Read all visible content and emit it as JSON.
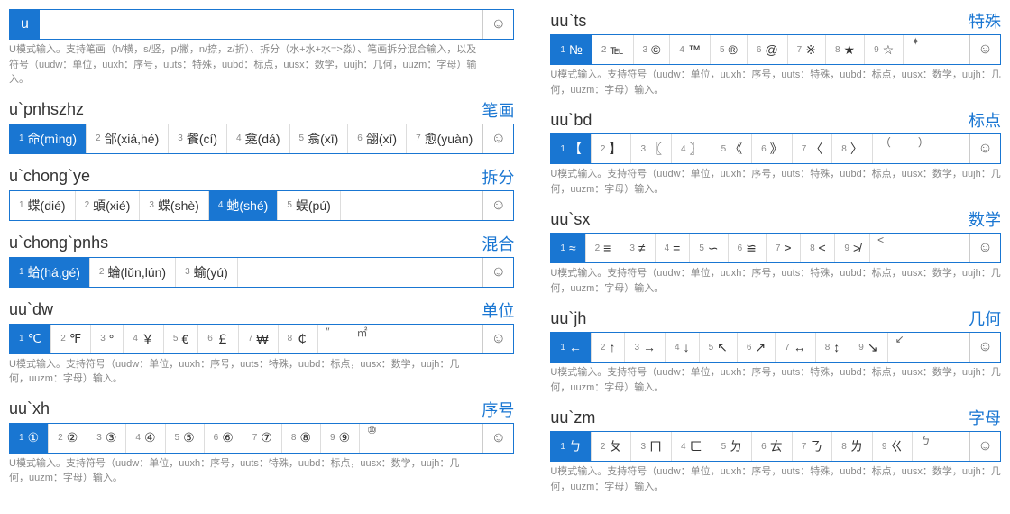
{
  "colors": {
    "accent": "#1976d2",
    "text": "#333333",
    "muted": "#888888"
  },
  "smile_glyph": "☺",
  "hint_full": "U模式输入。支持笔画（h/横，s/竖，p/撇，n/捺，z/折）、拆分（水+水+水=>淼）、笔画拆分混合输入，以及符号（uudw：单位，uuxh：序号，uuts：特殊，uubd：标点，uusx：数学，uujh：几何，uuzm：字母）输入。",
  "hint_sym": "U模式输入。支持符号（uudw：单位，uuxh：序号，uuts：特殊，uubd：标点，uusx：数学，uujh：几何，uuzm：字母）输入。",
  "left": [
    {
      "input": "u",
      "category": "",
      "mode": "prefix",
      "hint": "full",
      "candidates": []
    },
    {
      "input": "u`pnhszhz",
      "category": "笔画",
      "hint": "",
      "candidates": [
        {
          "n": "1",
          "t": "命(mìng)",
          "sel": true
        },
        {
          "n": "2",
          "t": "郃(xiá,hé)"
        },
        {
          "n": "3",
          "t": "飺(cí)"
        },
        {
          "n": "4",
          "t": "龛(dá)"
        },
        {
          "n": "5",
          "t": "翕(xī)"
        },
        {
          "n": "6",
          "t": "翖(xī)"
        },
        {
          "n": "7",
          "t": "愈(yuàn)"
        }
      ]
    },
    {
      "input": "u`chong`ye",
      "category": "拆分",
      "hint": "",
      "candidates": [
        {
          "n": "1",
          "t": "蝶(dié)"
        },
        {
          "n": "2",
          "t": "蝢(xié)"
        },
        {
          "n": "3",
          "t": "蝶(shè)"
        },
        {
          "n": "4",
          "t": "虵(shé)",
          "sel": true
        },
        {
          "n": "5",
          "t": "蜈(pú)"
        }
      ]
    },
    {
      "input": "u`chong`pnhs",
      "category": "混合",
      "hint": "",
      "candidates": [
        {
          "n": "1",
          "t": "蛤(há,gé)",
          "sel": true
        },
        {
          "n": "2",
          "t": "蜦(lǔn,lún)"
        },
        {
          "n": "3",
          "t": "蝓(yú)"
        }
      ]
    },
    {
      "input": "uu`dw",
      "category": "单位",
      "hint": "sym",
      "candidates": [
        {
          "n": "1",
          "t": "℃",
          "sel": true
        },
        {
          "n": "2",
          "t": "℉"
        },
        {
          "n": "3",
          "t": "°"
        },
        {
          "n": "4",
          "t": "￥"
        },
        {
          "n": "5",
          "t": "€"
        },
        {
          "n": "6",
          "t": "￡"
        },
        {
          "n": "7",
          "t": "₩"
        },
        {
          "n": "8",
          "t": "￠"
        }
      ],
      "extra": [
        "″",
        "㎡"
      ]
    },
    {
      "input": "uu`xh",
      "category": "序号",
      "hint": "sym",
      "candidates": [
        {
          "n": "1",
          "t": "①",
          "sel": true
        },
        {
          "n": "2",
          "t": "②"
        },
        {
          "n": "3",
          "t": "③"
        },
        {
          "n": "4",
          "t": "④"
        },
        {
          "n": "5",
          "t": "⑤"
        },
        {
          "n": "6",
          "t": "⑥"
        },
        {
          "n": "7",
          "t": "⑦"
        },
        {
          "n": "8",
          "t": "⑧"
        },
        {
          "n": "9",
          "t": "⑨"
        }
      ],
      "extra": [
        "⑩"
      ]
    }
  ],
  "right": [
    {
      "input": "uu`ts",
      "category": "特殊",
      "hint": "sym",
      "candidates": [
        {
          "n": "1",
          "t": "№",
          "sel": true
        },
        {
          "n": "2",
          "t": "℡"
        },
        {
          "n": "3",
          "t": "©"
        },
        {
          "n": "4",
          "t": "™"
        },
        {
          "n": "5",
          "t": "®"
        },
        {
          "n": "6",
          "t": "@"
        },
        {
          "n": "7",
          "t": "※"
        },
        {
          "n": "8",
          "t": "★"
        },
        {
          "n": "9",
          "t": "☆"
        }
      ],
      "extra": [
        "✦"
      ]
    },
    {
      "input": "uu`bd",
      "category": "标点",
      "hint": "sym",
      "candidates": [
        {
          "n": "1",
          "t": "【",
          "sel": true
        },
        {
          "n": "2",
          "t": "】"
        },
        {
          "n": "3",
          "t": "〖"
        },
        {
          "n": "4",
          "t": "〗"
        },
        {
          "n": "5",
          "t": "《"
        },
        {
          "n": "6",
          "t": "》"
        },
        {
          "n": "7",
          "t": "〈"
        },
        {
          "n": "8",
          "t": "〉"
        }
      ],
      "extra": [
        "（",
        "）"
      ]
    },
    {
      "input": "uu`sx",
      "category": "数学",
      "hint": "sym",
      "candidates": [
        {
          "n": "1",
          "t": "≈",
          "sel": true
        },
        {
          "n": "2",
          "t": "≡"
        },
        {
          "n": "3",
          "t": "≠"
        },
        {
          "n": "4",
          "t": "="
        },
        {
          "n": "5",
          "t": "∽"
        },
        {
          "n": "6",
          "t": "≌"
        },
        {
          "n": "7",
          "t": "≥"
        },
        {
          "n": "8",
          "t": "≤"
        },
        {
          "n": "9",
          "t": "≯"
        }
      ],
      "extra": [
        "<"
      ]
    },
    {
      "input": "uu`jh",
      "category": "几何",
      "hint": "sym",
      "candidates": [
        {
          "n": "1",
          "t": "←",
          "sel": true
        },
        {
          "n": "2",
          "t": "↑"
        },
        {
          "n": "3",
          "t": "→"
        },
        {
          "n": "4",
          "t": "↓"
        },
        {
          "n": "5",
          "t": "↖"
        },
        {
          "n": "6",
          "t": "↗"
        },
        {
          "n": "7",
          "t": "↔"
        },
        {
          "n": "8",
          "t": "↕"
        },
        {
          "n": "9",
          "t": "↘"
        }
      ],
      "extra": [
        "↙"
      ]
    },
    {
      "input": "uu`zm",
      "category": "字母",
      "hint": "sym",
      "candidates": [
        {
          "n": "1",
          "t": "ㄅ",
          "sel": true
        },
        {
          "n": "2",
          "t": "ㄆ"
        },
        {
          "n": "3",
          "t": "ㄇ"
        },
        {
          "n": "4",
          "t": "ㄈ"
        },
        {
          "n": "5",
          "t": "ㄉ"
        },
        {
          "n": "6",
          "t": "ㄊ"
        },
        {
          "n": "7",
          "t": "ㄋ"
        },
        {
          "n": "8",
          "t": "ㄌ"
        },
        {
          "n": "9",
          "t": "ㄍ"
        }
      ],
      "extra": [
        "ㄎ"
      ]
    }
  ]
}
